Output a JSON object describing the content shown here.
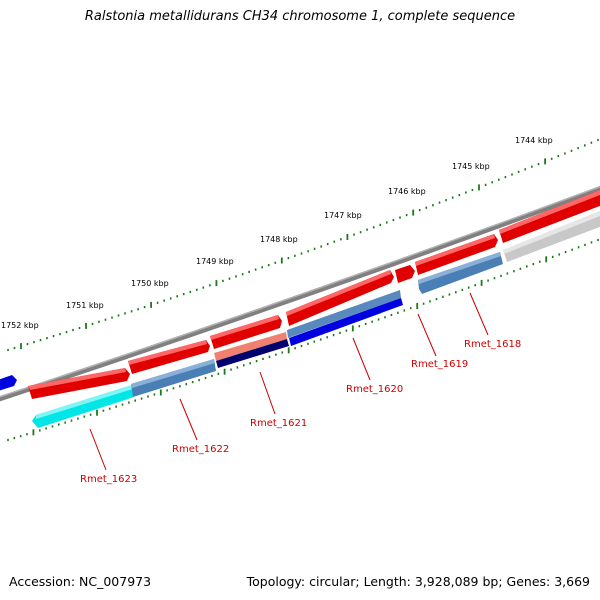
{
  "title": "Ralstonia metallidurans CH34 chromosome 1, complete sequence",
  "footer": {
    "accession": "Accession: NC_007973",
    "summary": "Topology: circular; Length: 3,928,089 bp; Genes: 3,669"
  },
  "scale_labels": [
    "1752 kbp",
    "1751 kbp",
    "1750 kbp",
    "1749 kbp",
    "1748 kbp",
    "1747 kbp",
    "1746 kbp",
    "1745 kbp",
    "1744 kbp"
  ],
  "gene_labels": [
    "Rmet_1623",
    "Rmet_1622",
    "Rmet_1621",
    "Rmet_1620",
    "Rmet_1619",
    "Rmet_1618"
  ],
  "colors": {
    "backbone": "#808080",
    "forward_cds": "#ff0000",
    "reverse_cds": "#4a7fb5",
    "reverse_cds_dark": "#0000dd",
    "cyan_cds": "#00eeee",
    "salmon_cds": "#f08070",
    "navy_cds": "#00006e",
    "grey_cds": "#c8c8c8",
    "tick": "#1a7a1a",
    "label": "#cc0000"
  }
}
